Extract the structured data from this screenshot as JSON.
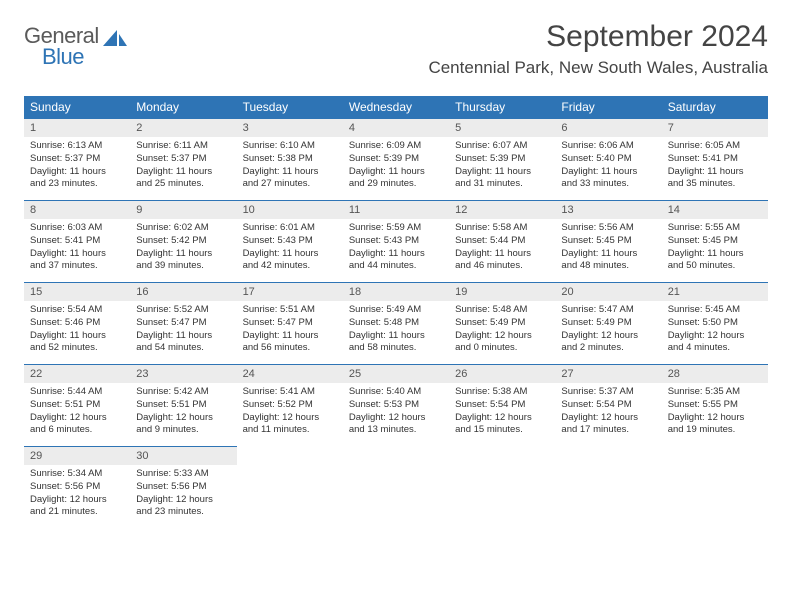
{
  "logo": {
    "general": "General",
    "blue": "Blue"
  },
  "title": "September 2024",
  "location": "Centennial Park, New South Wales, Australia",
  "colors": {
    "header_bg": "#2e74b5",
    "header_fg": "#ffffff",
    "daynum_bg": "#ececec",
    "border": "#2e74b5",
    "logo_gray": "#5a5a5a",
    "logo_blue": "#2e74b5"
  },
  "day_headers": [
    "Sunday",
    "Monday",
    "Tuesday",
    "Wednesday",
    "Thursday",
    "Friday",
    "Saturday"
  ],
  "weeks": [
    [
      {
        "n": "1",
        "sr": "Sunrise: 6:13 AM",
        "ss": "Sunset: 5:37 PM",
        "d1": "Daylight: 11 hours",
        "d2": "and 23 minutes."
      },
      {
        "n": "2",
        "sr": "Sunrise: 6:11 AM",
        "ss": "Sunset: 5:37 PM",
        "d1": "Daylight: 11 hours",
        "d2": "and 25 minutes."
      },
      {
        "n": "3",
        "sr": "Sunrise: 6:10 AM",
        "ss": "Sunset: 5:38 PM",
        "d1": "Daylight: 11 hours",
        "d2": "and 27 minutes."
      },
      {
        "n": "4",
        "sr": "Sunrise: 6:09 AM",
        "ss": "Sunset: 5:39 PM",
        "d1": "Daylight: 11 hours",
        "d2": "and 29 minutes."
      },
      {
        "n": "5",
        "sr": "Sunrise: 6:07 AM",
        "ss": "Sunset: 5:39 PM",
        "d1": "Daylight: 11 hours",
        "d2": "and 31 minutes."
      },
      {
        "n": "6",
        "sr": "Sunrise: 6:06 AM",
        "ss": "Sunset: 5:40 PM",
        "d1": "Daylight: 11 hours",
        "d2": "and 33 minutes."
      },
      {
        "n": "7",
        "sr": "Sunrise: 6:05 AM",
        "ss": "Sunset: 5:41 PM",
        "d1": "Daylight: 11 hours",
        "d2": "and 35 minutes."
      }
    ],
    [
      {
        "n": "8",
        "sr": "Sunrise: 6:03 AM",
        "ss": "Sunset: 5:41 PM",
        "d1": "Daylight: 11 hours",
        "d2": "and 37 minutes."
      },
      {
        "n": "9",
        "sr": "Sunrise: 6:02 AM",
        "ss": "Sunset: 5:42 PM",
        "d1": "Daylight: 11 hours",
        "d2": "and 39 minutes."
      },
      {
        "n": "10",
        "sr": "Sunrise: 6:01 AM",
        "ss": "Sunset: 5:43 PM",
        "d1": "Daylight: 11 hours",
        "d2": "and 42 minutes."
      },
      {
        "n": "11",
        "sr": "Sunrise: 5:59 AM",
        "ss": "Sunset: 5:43 PM",
        "d1": "Daylight: 11 hours",
        "d2": "and 44 minutes."
      },
      {
        "n": "12",
        "sr": "Sunrise: 5:58 AM",
        "ss": "Sunset: 5:44 PM",
        "d1": "Daylight: 11 hours",
        "d2": "and 46 minutes."
      },
      {
        "n": "13",
        "sr": "Sunrise: 5:56 AM",
        "ss": "Sunset: 5:45 PM",
        "d1": "Daylight: 11 hours",
        "d2": "and 48 minutes."
      },
      {
        "n": "14",
        "sr": "Sunrise: 5:55 AM",
        "ss": "Sunset: 5:45 PM",
        "d1": "Daylight: 11 hours",
        "d2": "and 50 minutes."
      }
    ],
    [
      {
        "n": "15",
        "sr": "Sunrise: 5:54 AM",
        "ss": "Sunset: 5:46 PM",
        "d1": "Daylight: 11 hours",
        "d2": "and 52 minutes."
      },
      {
        "n": "16",
        "sr": "Sunrise: 5:52 AM",
        "ss": "Sunset: 5:47 PM",
        "d1": "Daylight: 11 hours",
        "d2": "and 54 minutes."
      },
      {
        "n": "17",
        "sr": "Sunrise: 5:51 AM",
        "ss": "Sunset: 5:47 PM",
        "d1": "Daylight: 11 hours",
        "d2": "and 56 minutes."
      },
      {
        "n": "18",
        "sr": "Sunrise: 5:49 AM",
        "ss": "Sunset: 5:48 PM",
        "d1": "Daylight: 11 hours",
        "d2": "and 58 minutes."
      },
      {
        "n": "19",
        "sr": "Sunrise: 5:48 AM",
        "ss": "Sunset: 5:49 PM",
        "d1": "Daylight: 12 hours",
        "d2": "and 0 minutes."
      },
      {
        "n": "20",
        "sr": "Sunrise: 5:47 AM",
        "ss": "Sunset: 5:49 PM",
        "d1": "Daylight: 12 hours",
        "d2": "and 2 minutes."
      },
      {
        "n": "21",
        "sr": "Sunrise: 5:45 AM",
        "ss": "Sunset: 5:50 PM",
        "d1": "Daylight: 12 hours",
        "d2": "and 4 minutes."
      }
    ],
    [
      {
        "n": "22",
        "sr": "Sunrise: 5:44 AM",
        "ss": "Sunset: 5:51 PM",
        "d1": "Daylight: 12 hours",
        "d2": "and 6 minutes."
      },
      {
        "n": "23",
        "sr": "Sunrise: 5:42 AM",
        "ss": "Sunset: 5:51 PM",
        "d1": "Daylight: 12 hours",
        "d2": "and 9 minutes."
      },
      {
        "n": "24",
        "sr": "Sunrise: 5:41 AM",
        "ss": "Sunset: 5:52 PM",
        "d1": "Daylight: 12 hours",
        "d2": "and 11 minutes."
      },
      {
        "n": "25",
        "sr": "Sunrise: 5:40 AM",
        "ss": "Sunset: 5:53 PM",
        "d1": "Daylight: 12 hours",
        "d2": "and 13 minutes."
      },
      {
        "n": "26",
        "sr": "Sunrise: 5:38 AM",
        "ss": "Sunset: 5:54 PM",
        "d1": "Daylight: 12 hours",
        "d2": "and 15 minutes."
      },
      {
        "n": "27",
        "sr": "Sunrise: 5:37 AM",
        "ss": "Sunset: 5:54 PM",
        "d1": "Daylight: 12 hours",
        "d2": "and 17 minutes."
      },
      {
        "n": "28",
        "sr": "Sunrise: 5:35 AM",
        "ss": "Sunset: 5:55 PM",
        "d1": "Daylight: 12 hours",
        "d2": "and 19 minutes."
      }
    ],
    [
      {
        "n": "29",
        "sr": "Sunrise: 5:34 AM",
        "ss": "Sunset: 5:56 PM",
        "d1": "Daylight: 12 hours",
        "d2": "and 21 minutes."
      },
      {
        "n": "30",
        "sr": "Sunrise: 5:33 AM",
        "ss": "Sunset: 5:56 PM",
        "d1": "Daylight: 12 hours",
        "d2": "and 23 minutes."
      },
      null,
      null,
      null,
      null,
      null
    ]
  ]
}
